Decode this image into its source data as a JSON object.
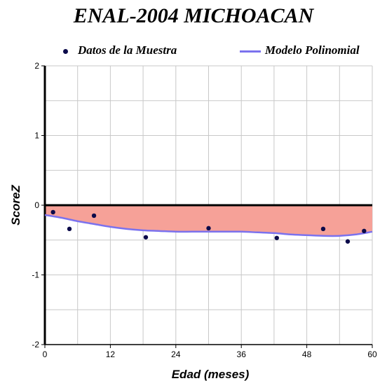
{
  "chart_data": {
    "type": "scatter",
    "title": "ENAL-2004 MICHOACAN",
    "xlabel": "Edad (meses)",
    "ylabel": "ScoreZ",
    "xlim": [
      0,
      60
    ],
    "ylim": [
      -2,
      2
    ],
    "x_ticks": [
      "0",
      "12",
      "24",
      "36",
      "48",
      "60"
    ],
    "y_ticks": [
      "2",
      "1",
      "0",
      "-1",
      "-2"
    ],
    "grid": true,
    "legend_position": "top",
    "series": [
      {
        "name": "Datos de la Muestra",
        "kind": "scatter",
        "color": "#0b0a4a",
        "x": [
          1.5,
          4.5,
          9,
          18.5,
          30,
          42.5,
          51,
          55.5,
          58.5
        ],
        "y": [
          -0.1,
          -0.34,
          -0.15,
          -0.46,
          -0.33,
          -0.47,
          -0.34,
          -0.52,
          -0.37
        ]
      },
      {
        "name": "Modelo Polinomial",
        "kind": "line",
        "color": "#7b72ee",
        "x": [
          0,
          3,
          6,
          9,
          12,
          15,
          18,
          21,
          24,
          27,
          30,
          33,
          36,
          39,
          42,
          45,
          48,
          51,
          54,
          57,
          60
        ],
        "y": [
          -0.14,
          -0.18,
          -0.23,
          -0.27,
          -0.31,
          -0.34,
          -0.36,
          -0.37,
          -0.38,
          -0.38,
          -0.38,
          -0.38,
          -0.38,
          -0.39,
          -0.4,
          -0.42,
          -0.43,
          -0.44,
          -0.44,
          -0.42,
          -0.38
        ]
      }
    ],
    "fill_color": "#f6a198",
    "zero_line_color": "#000000"
  }
}
